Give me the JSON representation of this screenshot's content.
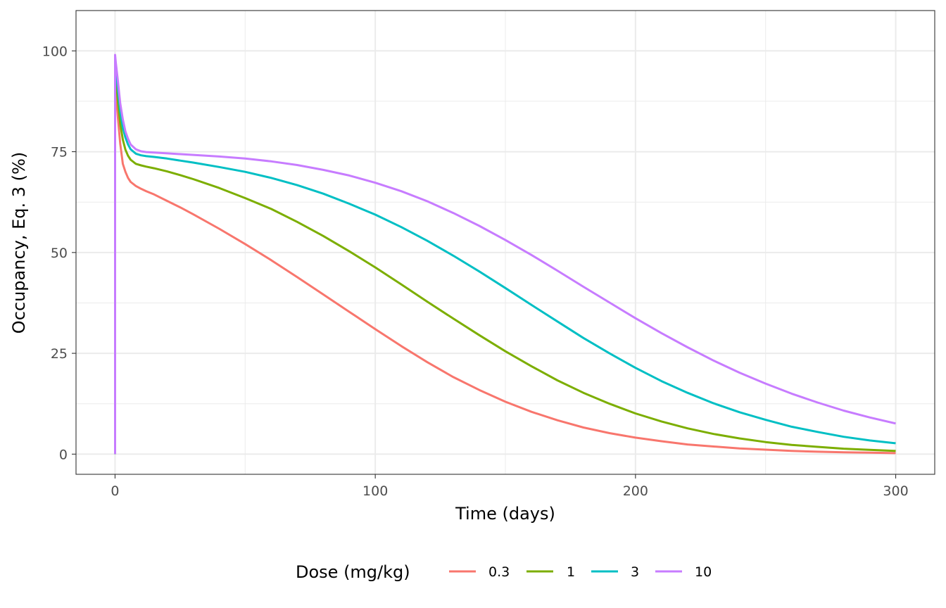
{
  "chart_data": {
    "type": "line",
    "xlabel": "Time (days)",
    "ylabel": "Occupancy, Eq. 3 (%)",
    "xlim": [
      -15,
      315
    ],
    "ylim": [
      -5,
      110
    ],
    "x_ticks": [
      0,
      100,
      200,
      300
    ],
    "y_ticks": [
      0,
      25,
      50,
      75,
      100
    ],
    "grid": true,
    "legend": {
      "title": "Dose (mg/kg)",
      "position": "bottom"
    },
    "series": [
      {
        "name": "0.3",
        "color": "#F8766D",
        "x": [
          0,
          0,
          0.3,
          1,
          2,
          3,
          4,
          5,
          6,
          8,
          10,
          12,
          15,
          20,
          25,
          30,
          40,
          50,
          60,
          70,
          80,
          90,
          100,
          110,
          120,
          130,
          140,
          150,
          160,
          170,
          180,
          190,
          200,
          210,
          220,
          230,
          240,
          250,
          260,
          270,
          280,
          290,
          300
        ],
        "y": [
          0,
          95,
          90,
          84,
          77,
          72,
          70,
          68.5,
          67.5,
          66.5,
          65.8,
          65.2,
          64.4,
          62.8,
          61.2,
          59.5,
          55.9,
          52.1,
          48.1,
          43.9,
          39.6,
          35.3,
          31,
          26.8,
          22.8,
          19.1,
          15.9,
          13,
          10.5,
          8.4,
          6.6,
          5.2,
          4.1,
          3.2,
          2.4,
          1.9,
          1.4,
          1.1,
          0.8,
          0.6,
          0.45,
          0.35,
          0.25
        ]
      },
      {
        "name": "1",
        "color": "#7CAE00",
        "x": [
          0,
          0,
          0.3,
          1,
          2,
          3,
          4,
          5,
          6,
          8,
          10,
          12,
          15,
          20,
          25,
          30,
          40,
          50,
          60,
          70,
          80,
          90,
          100,
          110,
          120,
          130,
          140,
          150,
          160,
          170,
          180,
          190,
          200,
          210,
          220,
          230,
          240,
          250,
          260,
          270,
          280,
          290,
          300
        ],
        "y": [
          0,
          97,
          94,
          88,
          82,
          78,
          75.5,
          74,
          73,
          72,
          71.6,
          71.3,
          70.9,
          70.1,
          69.2,
          68.2,
          66,
          63.5,
          60.8,
          57.6,
          54.1,
          50.3,
          46.3,
          42.1,
          37.8,
          33.6,
          29.5,
          25.5,
          21.8,
          18.3,
          15.2,
          12.5,
          10.1,
          8.1,
          6.4,
          5,
          3.9,
          3,
          2.3,
          1.8,
          1.35,
          1.05,
          0.8
        ]
      },
      {
        "name": "3",
        "color": "#00BFC4",
        "x": [
          0,
          0,
          0.3,
          1,
          2,
          3,
          4,
          5,
          6,
          8,
          10,
          12,
          15,
          20,
          25,
          30,
          40,
          50,
          60,
          70,
          80,
          90,
          100,
          110,
          120,
          130,
          140,
          150,
          160,
          170,
          180,
          190,
          200,
          210,
          220,
          230,
          240,
          250,
          260,
          270,
          280,
          290,
          300
        ],
        "y": [
          0,
          98,
          96,
          91,
          85,
          81,
          78.5,
          76.8,
          75.6,
          74.5,
          74.1,
          73.9,
          73.7,
          73.3,
          72.8,
          72.3,
          71.2,
          70,
          68.5,
          66.7,
          64.6,
          62.1,
          59.4,
          56.3,
          52.9,
          49.2,
          45.3,
          41.2,
          37,
          32.9,
          28.8,
          25,
          21.4,
          18.1,
          15.2,
          12.6,
          10.4,
          8.5,
          6.8,
          5.5,
          4.3,
          3.4,
          2.7
        ]
      },
      {
        "name": "10",
        "color": "#C77CFF",
        "x": [
          0,
          0,
          0.3,
          1,
          2,
          3,
          4,
          5,
          6,
          8,
          10,
          12,
          15,
          20,
          25,
          30,
          40,
          50,
          60,
          70,
          80,
          90,
          100,
          110,
          120,
          130,
          140,
          150,
          160,
          170,
          180,
          190,
          200,
          210,
          220,
          230,
          240,
          250,
          260,
          270,
          280,
          290,
          300
        ],
        "y": [
          0,
          99,
          97,
          93,
          87,
          83,
          80,
          78.2,
          76.8,
          75.6,
          75.1,
          74.9,
          74.8,
          74.6,
          74.4,
          74.2,
          73.8,
          73.3,
          72.6,
          71.7,
          70.5,
          69.1,
          67.3,
          65.2,
          62.7,
          59.8,
          56.6,
          53.1,
          49.4,
          45.5,
          41.5,
          37.6,
          33.7,
          30,
          26.5,
          23.2,
          20.2,
          17.5,
          15,
          12.8,
          10.8,
          9.1,
          7.6
        ]
      }
    ]
  }
}
